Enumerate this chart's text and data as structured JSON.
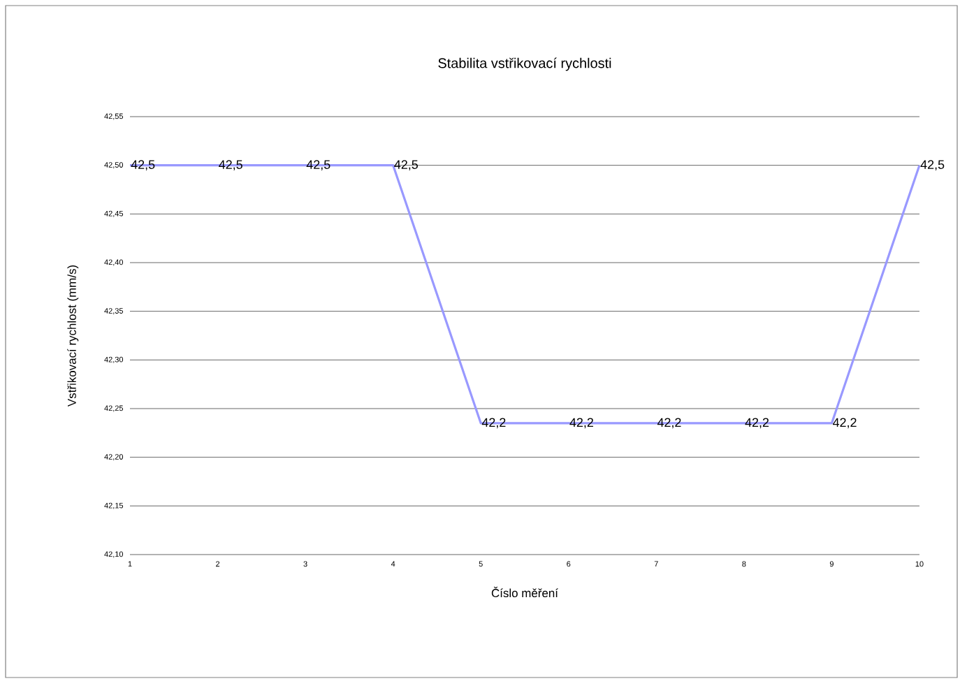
{
  "chart_data": {
    "type": "line",
    "title": "Stabilita vstřikovací rychlosti",
    "xlabel": "Číslo měření",
    "ylabel": "Vstřikovací rychlost (mm/s)",
    "x": [
      1,
      2,
      3,
      4,
      5,
      6,
      7,
      8,
      9,
      10
    ],
    "series": [
      {
        "color": "#9999ff",
        "values": [
          42.5,
          42.5,
          42.5,
          42.5,
          42.235,
          42.235,
          42.235,
          42.235,
          42.235,
          42.5
        ]
      }
    ],
    "value_labels": [
      "42,5",
      "42,5",
      "42,5",
      "42,5",
      "42,2",
      "42,2",
      "42,2",
      "42,2",
      "42,2",
      "42,5"
    ],
    "xlim": [
      1,
      10
    ],
    "xticks": [
      1,
      2,
      3,
      4,
      5,
      6,
      7,
      8,
      9,
      10
    ],
    "ylim": [
      42.1,
      42.55
    ],
    "yticks": [
      {
        "value": 42.1,
        "label": "42,10"
      },
      {
        "value": 42.15,
        "label": "42,15"
      },
      {
        "value": 42.2,
        "label": "42,20"
      },
      {
        "value": 42.25,
        "label": "42,25"
      },
      {
        "value": 42.3,
        "label": "42,30"
      },
      {
        "value": 42.35,
        "label": "42,35"
      },
      {
        "value": 42.4,
        "label": "42,40"
      },
      {
        "value": 42.45,
        "label": "42,45"
      },
      {
        "value": 42.5,
        "label": "42,50"
      },
      {
        "value": 42.55,
        "label": "42,55"
      }
    ],
    "grid": "y",
    "line_style": "solid"
  }
}
